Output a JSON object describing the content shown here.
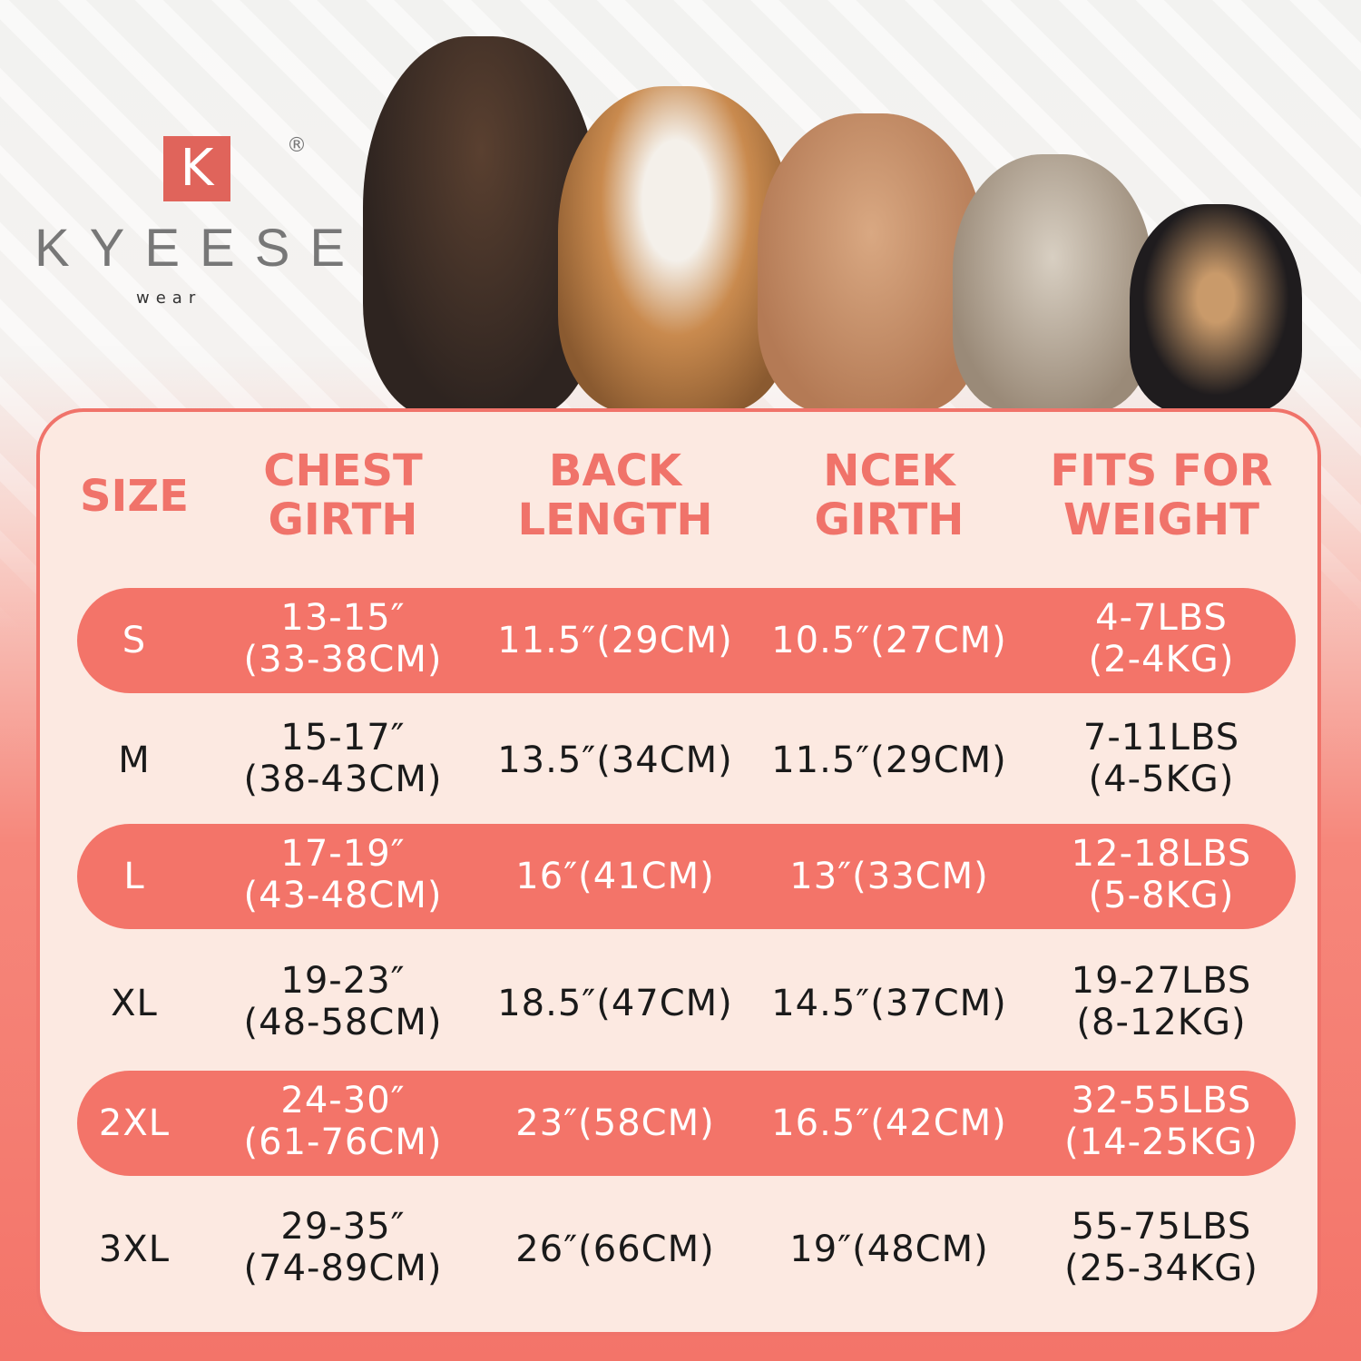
{
  "brand": {
    "logo_letter": "K",
    "registered": "®",
    "name": "KYEESE",
    "sub": "wear",
    "accent": "#f0736a"
  },
  "images": [
    "doberman-dog",
    "beagle-dog",
    "poodle-dog",
    "terrier-dog",
    "chihuahua-dog"
  ],
  "table": {
    "headers": [
      [
        "SIZE"
      ],
      [
        "CHEST",
        "GIRTH"
      ],
      [
        "BACK",
        "LENGTH"
      ],
      [
        "NCEK",
        "GIRTH"
      ],
      [
        "FITS FOR",
        "WEIGHT"
      ]
    ],
    "rows": [
      {
        "size": "S",
        "chest": [
          "13-15″",
          "(33-38CM)"
        ],
        "back": "11.5″(29CM)",
        "neck": "10.5″(27CM)",
        "weight": [
          "4-7LBS",
          "(2-4KG)"
        ],
        "highlight": true
      },
      {
        "size": "M",
        "chest": [
          "15-17″",
          "(38-43CM)"
        ],
        "back": "13.5″(34CM)",
        "neck": "11.5″(29CM)",
        "weight": [
          "7-11LBS",
          "(4-5KG)"
        ],
        "highlight": false
      },
      {
        "size": "L",
        "chest": [
          "17-19″",
          "(43-48CM)"
        ],
        "back": "16″(41CM)",
        "neck": "13″(33CM)",
        "weight": [
          "12-18LBS",
          "(5-8KG)"
        ],
        "highlight": true
      },
      {
        "size": "XL",
        "chest": [
          "19-23″",
          "(48-58CM)"
        ],
        "back": "18.5″(47CM)",
        "neck": "14.5″(37CM)",
        "weight": [
          "19-27LBS",
          "(8-12KG)"
        ],
        "highlight": false
      },
      {
        "size": "2XL",
        "chest": [
          "24-30″",
          "(61-76CM)"
        ],
        "back": "23″(58CM)",
        "neck": "16.5″(42CM)",
        "weight": [
          "32-55LBS",
          "(14-25KG)"
        ],
        "highlight": true
      },
      {
        "size": "3XL",
        "chest": [
          "29-35″",
          "(74-89CM)"
        ],
        "back": "26″(66CM)",
        "neck": "19″(48CM)",
        "weight": [
          "55-75LBS",
          "(25-34KG)"
        ],
        "highlight": false
      }
    ]
  }
}
